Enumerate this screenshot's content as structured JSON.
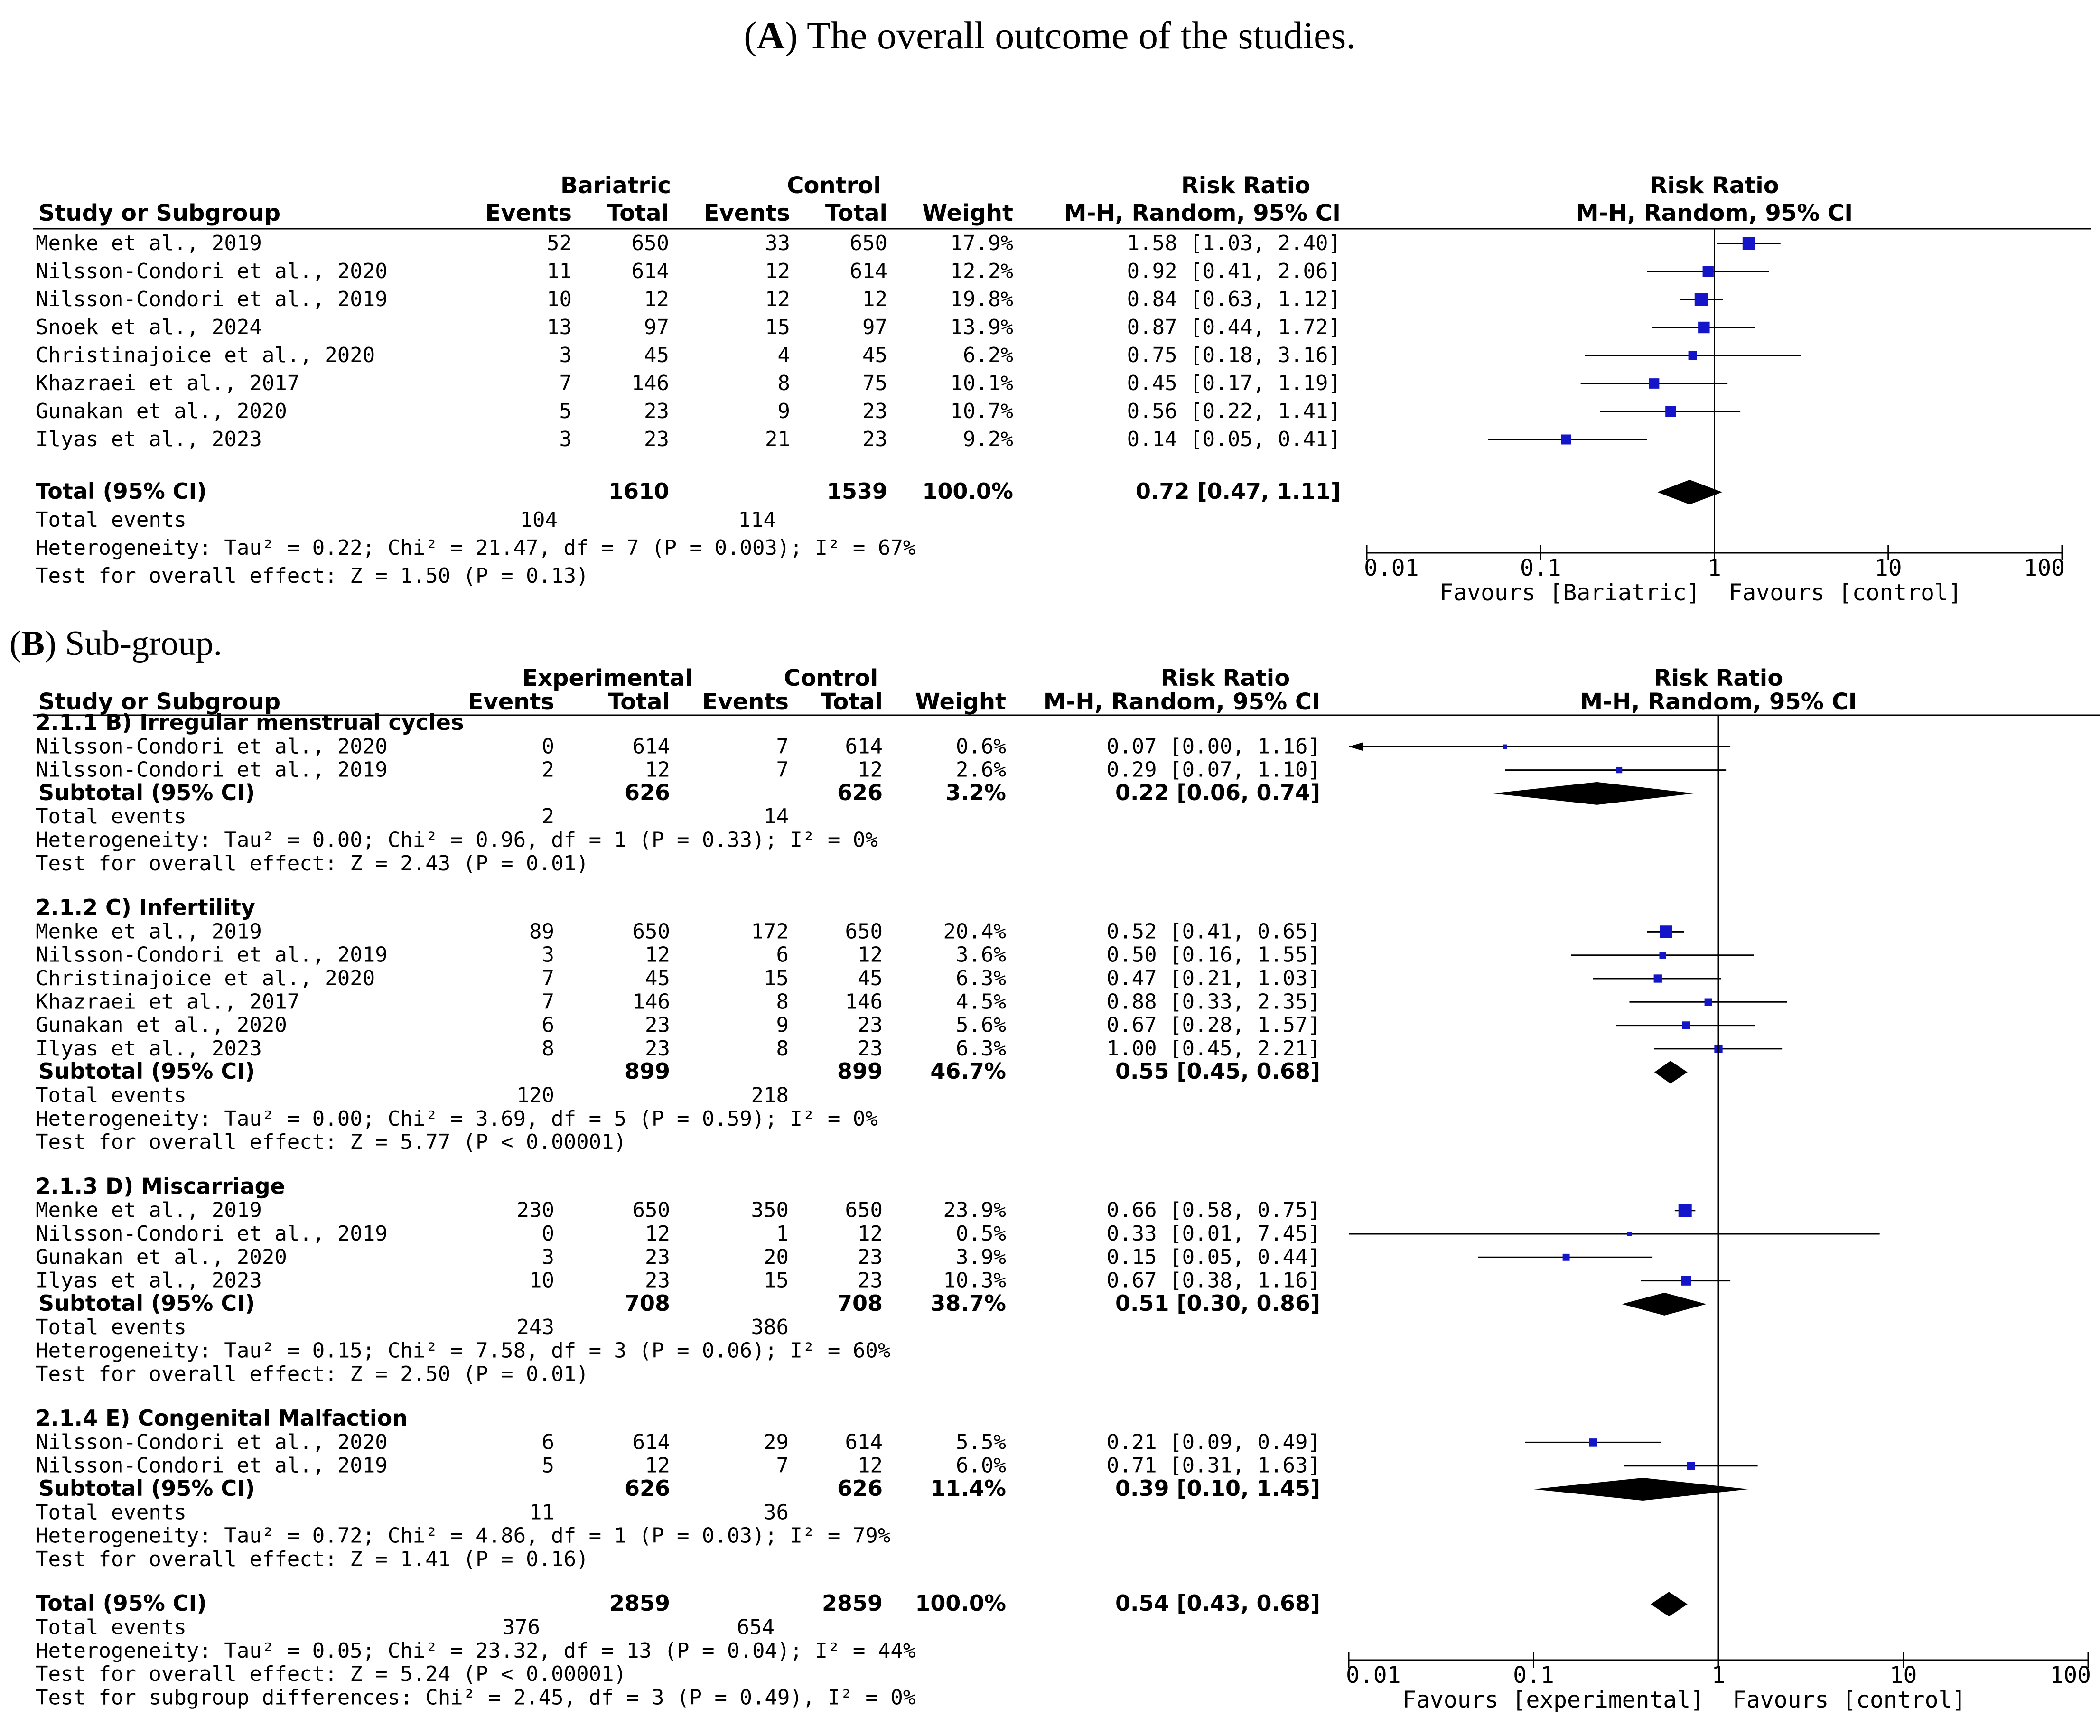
{
  "chart_data": [
    {
      "type": "forest",
      "caption": {
        "label": "A",
        "text": ") The overall outcome of the studies."
      },
      "title": "",
      "header": {
        "group1": "Bariatric",
        "group2": "Control",
        "study": "Study or Subgroup",
        "events": "Events",
        "total": "Total",
        "weight": "Weight",
        "rr": "Risk Ratio",
        "rr_method": "M-H, Random, 95% CI"
      },
      "groups": [
        {
          "title": "",
          "studies": [
            {
              "name": "Menke  et al., 2019",
              "e1": "52",
              "n1": "650",
              "e2": "33",
              "n2": "650",
              "weight": "17.9%",
              "rr": 1.58,
              "lo": 1.03,
              "hi": 2.4,
              "ci": "1.58 [1.03, 2.40]"
            },
            {
              "name": "Nilsson-Condori et al., 2020",
              "e1": "11",
              "n1": "614",
              "e2": "12",
              "n2": "614",
              "weight": "12.2%",
              "rr": 0.92,
              "lo": 0.41,
              "hi": 2.06,
              "ci": "0.92 [0.41, 2.06]"
            },
            {
              "name": "Nilsson-Condori et al., 2019",
              "e1": "10",
              "n1": "12",
              "e2": "12",
              "n2": "12",
              "weight": "19.8%",
              "rr": 0.84,
              "lo": 0.63,
              "hi": 1.12,
              "ci": "0.84 [0.63, 1.12]"
            },
            {
              "name": "Snoek et al., 2024",
              "e1": "13",
              "n1": "97",
              "e2": "15",
              "n2": "97",
              "weight": "13.9%",
              "rr": 0.87,
              "lo": 0.44,
              "hi": 1.72,
              "ci": "0.87 [0.44, 1.72]"
            },
            {
              "name": "Christinajoice et al., 2020",
              "e1": "3",
              "n1": "45",
              "e2": "4",
              "n2": "45",
              "weight": "6.2%",
              "rr": 0.75,
              "lo": 0.18,
              "hi": 3.16,
              "ci": "0.75 [0.18, 3.16]"
            },
            {
              "name": "Khazraei et al., 2017",
              "e1": "7",
              "n1": "146",
              "e2": "8",
              "n2": "75",
              "weight": "10.1%",
              "rr": 0.45,
              "lo": 0.17,
              "hi": 1.19,
              "ci": "0.45 [0.17, 1.19]"
            },
            {
              "name": "Gunakan et al., 2020",
              "e1": "5",
              "n1": "23",
              "e2": "9",
              "n2": "23",
              "weight": "10.7%",
              "rr": 0.56,
              "lo": 0.22,
              "hi": 1.41,
              "ci": "0.56 [0.22, 1.41]"
            },
            {
              "name": "Ilyas et al., 2023",
              "e1": "3",
              "n1": "23",
              "e2": "21",
              "n2": "23",
              "weight": "9.2%",
              "rr": 0.14,
              "lo": 0.05,
              "hi": 0.41,
              "ci": "0.14 [0.05, 0.41]"
            }
          ]
        }
      ],
      "overall": {
        "label": "Total (95% CI)",
        "n1": "1610",
        "n2": "1539",
        "weight": "100.0%",
        "rr": 0.72,
        "lo": 0.47,
        "hi": 1.11,
        "ci": "0.72 [0.47, 1.11]",
        "events_label": "Total events",
        "events1": "104",
        "events2": "114",
        "heterogeneity": "Heterogeneity: Tau² = 0.22; Chi² = 21.47, df = 7 (P = 0.003); I² = 67%",
        "test": "Test for overall effect: Z = 1.50 (P = 0.13)"
      },
      "axis": {
        "scale": "log",
        "ticks": [
          0.01,
          0.1,
          1,
          10,
          100
        ],
        "tick_labels": [
          "0.01",
          "0.1",
          "1",
          "10",
          "100"
        ],
        "xlim": [
          0.01,
          100
        ]
      },
      "favours": {
        "left": "Favours [Bariatric]",
        "right": "Favours [control]"
      }
    },
    {
      "type": "forest",
      "caption": {
        "label": "B",
        "text": ") Sub-group."
      },
      "title": "",
      "header": {
        "group1": "Experimental",
        "group2": "Control",
        "study": "Study or Subgroup",
        "events": "Events",
        "total": "Total",
        "weight": "Weight",
        "rr": "Risk Ratio",
        "rr_method": "M-H, Random, 95% CI"
      },
      "groups": [
        {
          "title": "2.1.1 B) Irregular menstrual cycles",
          "studies": [
            {
              "name": "Nilsson-Condori et al., 2020",
              "e1": "0",
              "n1": "614",
              "e2": "7",
              "n2": "614",
              "weight": "0.6%",
              "rr": 0.07,
              "lo": 0.0,
              "hi": 1.16,
              "ci": "0.07 [0.00, 1.16]"
            },
            {
              "name": "Nilsson-Condori et al., 2019",
              "e1": "2",
              "n1": "12",
              "e2": "7",
              "n2": "12",
              "weight": "2.6%",
              "rr": 0.29,
              "lo": 0.07,
              "hi": 1.1,
              "ci": "0.29 [0.07, 1.10]"
            }
          ],
          "subtotal": {
            "label": "Subtotal (95% CI)",
            "n1": "626",
            "n2": "626",
            "weight": "3.2%",
            "rr": 0.22,
            "lo": 0.06,
            "hi": 0.74,
            "ci": "0.22 [0.06, 0.74]"
          },
          "events_label": "Total events",
          "events1": "2",
          "events2": "14",
          "heterogeneity": "Heterogeneity: Tau² = 0.00; Chi² = 0.96, df = 1 (P = 0.33); I² = 0%",
          "test": "Test for overall effect: Z = 2.43 (P = 0.01)"
        },
        {
          "title": "2.1.2 C) Infertility",
          "studies": [
            {
              "name": "Menke  et al., 2019",
              "e1": "89",
              "n1": "650",
              "e2": "172",
              "n2": "650",
              "weight": "20.4%",
              "rr": 0.52,
              "lo": 0.41,
              "hi": 0.65,
              "ci": "0.52 [0.41, 0.65]"
            },
            {
              "name": "Nilsson-Condori et al., 2019",
              "e1": "3",
              "n1": "12",
              "e2": "6",
              "n2": "12",
              "weight": "3.6%",
              "rr": 0.5,
              "lo": 0.16,
              "hi": 1.55,
              "ci": "0.50 [0.16, 1.55]"
            },
            {
              "name": "Christinajoice et al., 2020",
              "e1": "7",
              "n1": "45",
              "e2": "15",
              "n2": "45",
              "weight": "6.3%",
              "rr": 0.47,
              "lo": 0.21,
              "hi": 1.03,
              "ci": "0.47 [0.21, 1.03]"
            },
            {
              "name": "Khazraei et al., 2017",
              "e1": "7",
              "n1": "146",
              "e2": "8",
              "n2": "146",
              "weight": "4.5%",
              "rr": 0.88,
              "lo": 0.33,
              "hi": 2.35,
              "ci": "0.88 [0.33, 2.35]"
            },
            {
              "name": "Gunakan et al., 2020",
              "e1": "6",
              "n1": "23",
              "e2": "9",
              "n2": "23",
              "weight": "5.6%",
              "rr": 0.67,
              "lo": 0.28,
              "hi": 1.57,
              "ci": "0.67 [0.28, 1.57]"
            },
            {
              "name": "Ilyas et al., 2023",
              "e1": "8",
              "n1": "23",
              "e2": "8",
              "n2": "23",
              "weight": "6.3%",
              "rr": 1.0,
              "lo": 0.45,
              "hi": 2.21,
              "ci": "1.00 [0.45, 2.21]"
            }
          ],
          "subtotal": {
            "label": "Subtotal (95% CI)",
            "n1": "899",
            "n2": "899",
            "weight": "46.7%",
            "rr": 0.55,
            "lo": 0.45,
            "hi": 0.68,
            "ci": "0.55 [0.45, 0.68]"
          },
          "events_label": "Total events",
          "events1": "120",
          "events2": "218",
          "heterogeneity": "Heterogeneity: Tau² = 0.00; Chi² = 3.69, df = 5 (P = 0.59); I² = 0%",
          "test": "Test for overall effect: Z = 5.77 (P < 0.00001)"
        },
        {
          "title": "2.1.3 D) Miscarriage",
          "studies": [
            {
              "name": "Menke  et al., 2019",
              "e1": "230",
              "n1": "650",
              "e2": "350",
              "n2": "650",
              "weight": "23.9%",
              "rr": 0.66,
              "lo": 0.58,
              "hi": 0.75,
              "ci": "0.66 [0.58, 0.75]"
            },
            {
              "name": "Nilsson-Condori et al., 2019",
              "e1": "0",
              "n1": "12",
              "e2": "1",
              "n2": "12",
              "weight": "0.5%",
              "rr": 0.33,
              "lo": 0.01,
              "hi": 7.45,
              "ci": "0.33 [0.01, 7.45]"
            },
            {
              "name": "Gunakan et al., 2020",
              "e1": "3",
              "n1": "23",
              "e2": "20",
              "n2": "23",
              "weight": "3.9%",
              "rr": 0.15,
              "lo": 0.05,
              "hi": 0.44,
              "ci": "0.15 [0.05, 0.44]"
            },
            {
              "name": "Ilyas et al., 2023",
              "e1": "10",
              "n1": "23",
              "e2": "15",
              "n2": "23",
              "weight": "10.3%",
              "rr": 0.67,
              "lo": 0.38,
              "hi": 1.16,
              "ci": "0.67 [0.38, 1.16]"
            }
          ],
          "subtotal": {
            "label": "Subtotal (95% CI)",
            "n1": "708",
            "n2": "708",
            "weight": "38.7%",
            "rr": 0.51,
            "lo": 0.3,
            "hi": 0.86,
            "ci": "0.51 [0.30, 0.86]"
          },
          "events_label": "Total events",
          "events1": "243",
          "events2": "386",
          "heterogeneity": "Heterogeneity: Tau² = 0.15; Chi² = 7.58, df = 3 (P = 0.06); I² = 60%",
          "test": "Test for overall effect: Z = 2.50 (P = 0.01)"
        },
        {
          "title": "2.1.4 E) Congenital Malfaction",
          "studies": [
            {
              "name": "Nilsson-Condori et al., 2020",
              "e1": "6",
              "n1": "614",
              "e2": "29",
              "n2": "614",
              "weight": "5.5%",
              "rr": 0.21,
              "lo": 0.09,
              "hi": 0.49,
              "ci": "0.21 [0.09, 0.49]"
            },
            {
              "name": "Nilsson-Condori et al., 2019",
              "e1": "5",
              "n1": "12",
              "e2": "7",
              "n2": "12",
              "weight": "6.0%",
              "rr": 0.71,
              "lo": 0.31,
              "hi": 1.63,
              "ci": "0.71 [0.31, 1.63]"
            }
          ],
          "subtotal": {
            "label": "Subtotal (95% CI)",
            "n1": "626",
            "n2": "626",
            "weight": "11.4%",
            "rr": 0.39,
            "lo": 0.1,
            "hi": 1.45,
            "ci": "0.39 [0.10, 1.45]"
          },
          "events_label": "Total events",
          "events1": "11",
          "events2": "36",
          "heterogeneity": "Heterogeneity: Tau² = 0.72; Chi² = 4.86, df = 1 (P = 0.03); I² = 79%",
          "test": "Test for overall effect: Z = 1.41 (P = 0.16)"
        }
      ],
      "overall": {
        "label": "Total (95% CI)",
        "n1": "2859",
        "n2": "2859",
        "weight": "100.0%",
        "rr": 0.54,
        "lo": 0.43,
        "hi": 0.68,
        "ci": "0.54 [0.43, 0.68]",
        "events_label": "Total events",
        "events1": "376",
        "events2": "654",
        "heterogeneity": "Heterogeneity: Tau² = 0.05; Chi² = 23.32, df = 13 (P = 0.04); I² = 44%",
        "test": "Test for overall effect: Z = 5.24 (P < 0.00001)",
        "subgroup_test": "Test for subgroup differences: Chi² = 2.45, df = 3 (P = 0.49), I² = 0%"
      },
      "axis": {
        "scale": "log",
        "ticks": [
          0.01,
          0.1,
          1,
          10,
          100
        ],
        "tick_labels": [
          "0.01",
          "0.1",
          "1",
          "10",
          "100"
        ],
        "xlim": [
          0.01,
          100
        ]
      },
      "favours": {
        "left": "Favours [experimental]",
        "right": "Favours [control]"
      }
    }
  ],
  "colors": {
    "marker": "#1414c8",
    "diamond": "#000000",
    "text": "#000000"
  }
}
